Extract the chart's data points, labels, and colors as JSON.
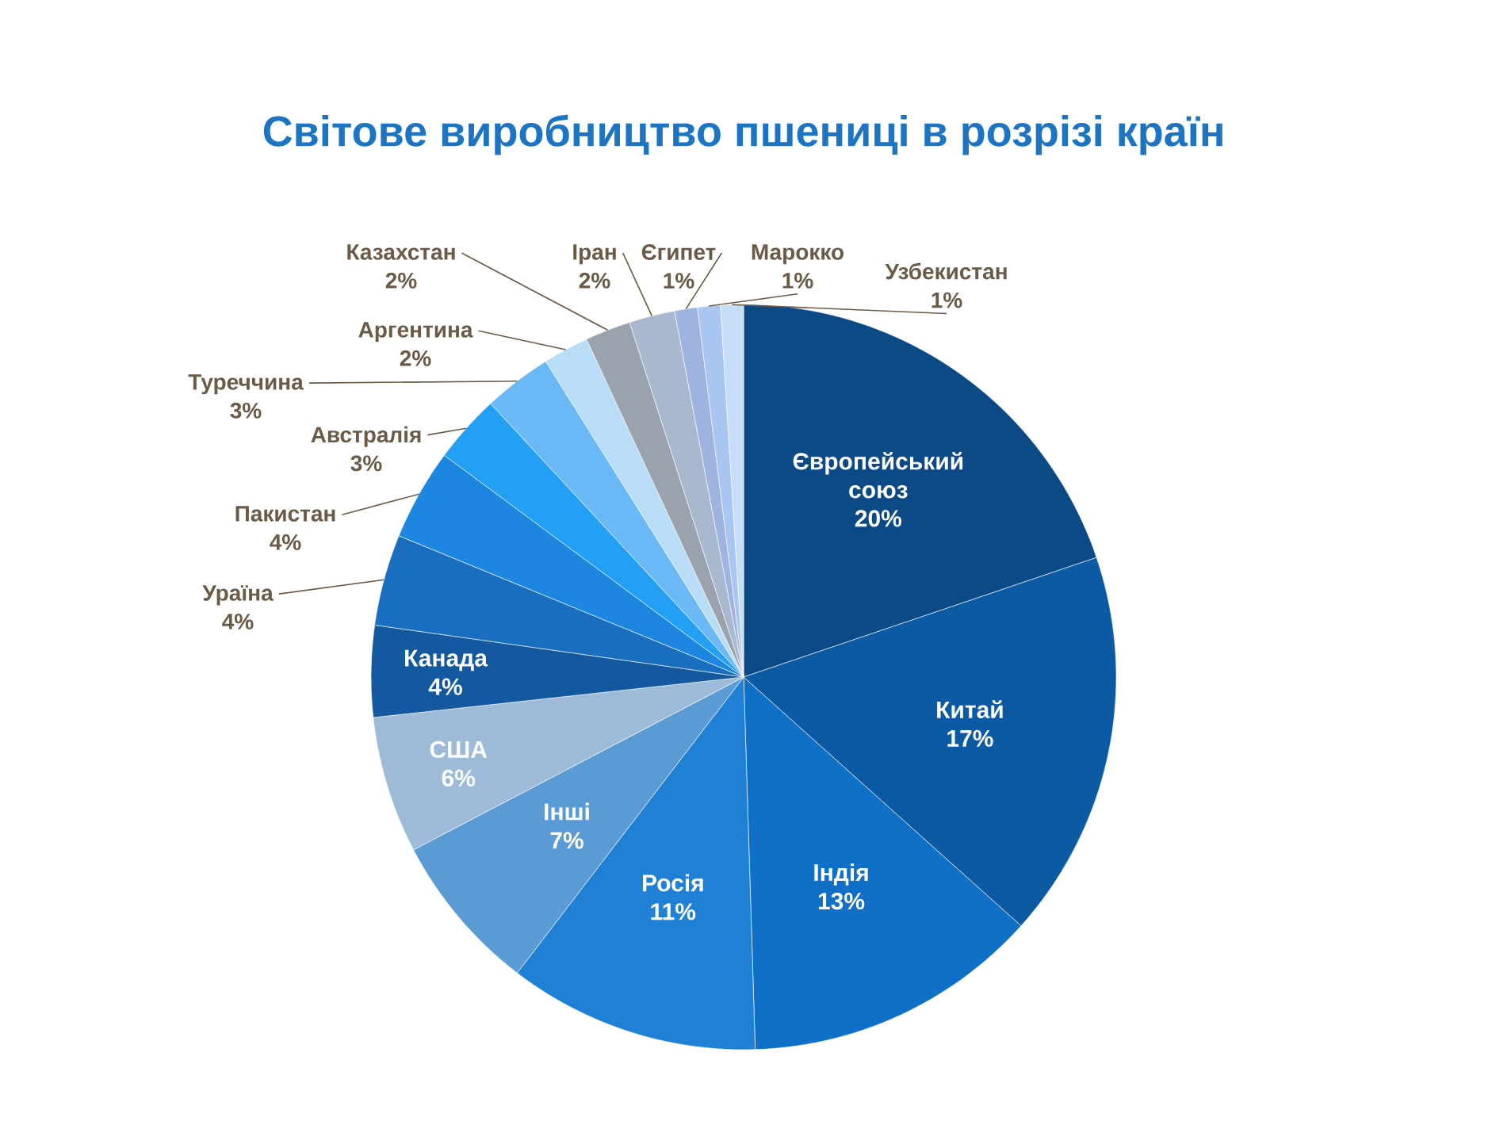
{
  "chart_data": {
    "type": "pie",
    "title": "Світове виробництво пшениці в розрізі країн",
    "categories": [
      "Європейський союз",
      "Китай",
      "Індія",
      "Росія",
      "Інші",
      "США",
      "Канада",
      "Ураїна",
      "Пакистан",
      "Австралія",
      "Туреччина",
      "Аргентина",
      "Казахстан",
      "Іран",
      "Єгипет",
      "Марокко",
      "Узбекистан"
    ],
    "values": [
      20,
      17,
      13,
      11,
      7,
      6,
      4,
      4,
      4,
      3,
      3,
      2,
      2,
      2,
      1,
      1,
      1
    ],
    "value_labels": [
      "20%",
      "17%",
      "13%",
      "11%",
      "7%",
      "6%",
      "4%",
      "4%",
      "4%",
      "3%",
      "3%",
      "2%",
      "2%",
      "2%",
      "1%",
      "1%",
      "1%"
    ],
    "colors": [
      "#0b4a86",
      "#0b5aa3",
      "#1070c8",
      "#2080d6",
      "#5b9bd5",
      "#9dbad8",
      "#1459a0",
      "#1a6ec0",
      "#1c86e0",
      "#23a0f5",
      "#6ab8f5",
      "#b9dcf7",
      "#9aa3ad",
      "#a8b8cf",
      "#9fb3e0",
      "#a9c5f2",
      "#c5ddf7"
    ]
  }
}
